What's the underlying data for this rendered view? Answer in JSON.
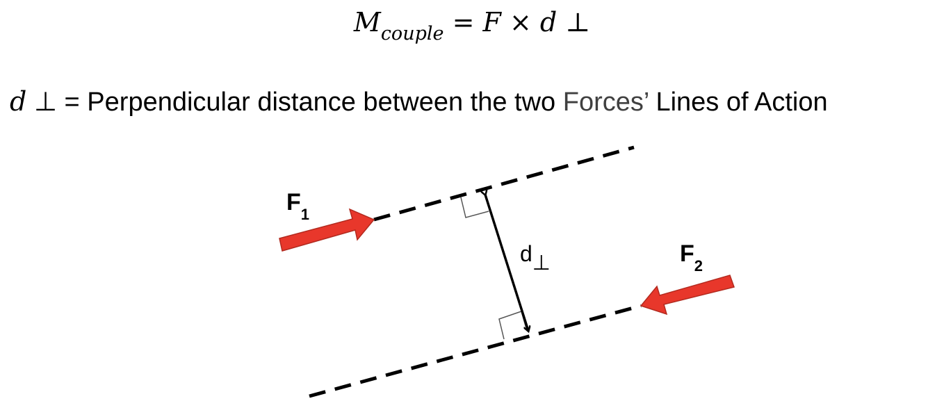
{
  "formula": {
    "lhs_symbol": "M",
    "lhs_subscript": "couple",
    "equals": "=",
    "force": "F",
    "times": "×",
    "distance": "d",
    "perp": "⊥"
  },
  "definition": {
    "symbol": "d",
    "perp": "⊥",
    "equals_text": " = Perpendicular distance between the two ",
    "forces_word": "Forces’",
    "rest": " Lines of Action"
  },
  "diagram": {
    "force1_label": "F",
    "force1_subscript": "1",
    "force2_label": "F",
    "force2_subscript": "2",
    "distance_label": "d",
    "distance_subscript": "⊥",
    "arrow_color": "#e8372b",
    "arrow_outline_color": "#b22a1f",
    "line_color": "#000000"
  }
}
